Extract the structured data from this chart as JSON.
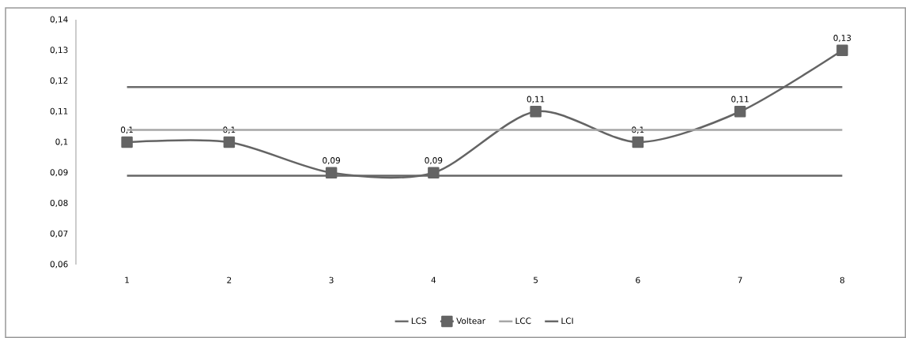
{
  "chart_data": {
    "type": "line",
    "categories": [
      "1",
      "2",
      "3",
      "4",
      "5",
      "6",
      "7",
      "8"
    ],
    "ylim": [
      0.06,
      0.14
    ],
    "yticks": [
      {
        "value": 0.06,
        "label": "0,06"
      },
      {
        "value": 0.07,
        "label": "0,07"
      },
      {
        "value": 0.08,
        "label": "0,08"
      },
      {
        "value": 0.09,
        "label": "0,09"
      },
      {
        "value": 0.1,
        "label": "0,1"
      },
      {
        "value": 0.11,
        "label": "0,11"
      },
      {
        "value": 0.12,
        "label": "0,12"
      },
      {
        "value": 0.13,
        "label": "0,13"
      },
      {
        "value": 0.14,
        "label": "0,14"
      }
    ],
    "legend": "bottom",
    "series": [
      {
        "name": "LCS",
        "color": "#6b6b6b",
        "marker": "none",
        "values": [
          0.118,
          0.118,
          0.118,
          0.118,
          0.118,
          0.118,
          0.118,
          0.118
        ]
      },
      {
        "name": "Voltear",
        "color": "#646464",
        "marker": "square",
        "values": [
          0.1,
          0.1,
          0.09,
          0.09,
          0.11,
          0.1,
          0.11,
          0.13
        ],
        "value_labels": [
          "0,1",
          "0,1",
          "0,09",
          "0,09",
          "0,11",
          "0,1",
          "0,11",
          "0,13"
        ]
      },
      {
        "name": "LCC",
        "color": "#a6a6a6",
        "marker": "none",
        "values": [
          0.104,
          0.104,
          0.104,
          0.104,
          0.104,
          0.104,
          0.104,
          0.104
        ]
      },
      {
        "name": "LCI",
        "color": "#666666",
        "marker": "none",
        "values": [
          0.089,
          0.089,
          0.089,
          0.089,
          0.089,
          0.089,
          0.089,
          0.089
        ]
      }
    ]
  }
}
